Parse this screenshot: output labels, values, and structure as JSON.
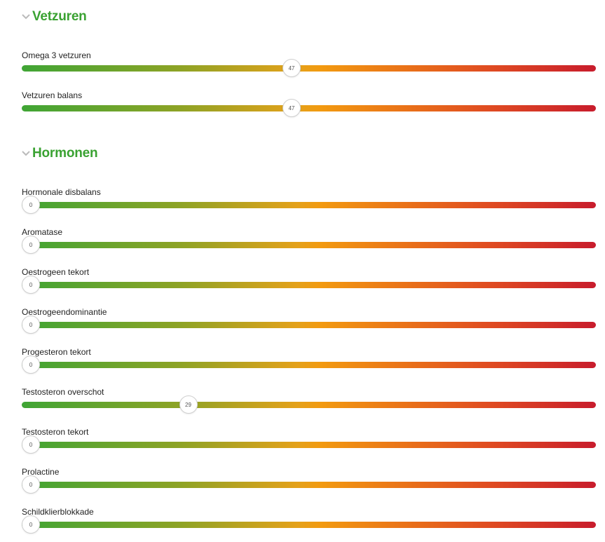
{
  "sections": [
    {
      "title": "Vetzuren",
      "sliders": [
        {
          "label": "Omega 3 vetzuren",
          "value": "47"
        },
        {
          "label": "Vetzuren balans",
          "value": "47"
        }
      ]
    },
    {
      "title": "Hormonen",
      "sliders": [
        {
          "label": "Hormonale disbalans",
          "value": "0"
        },
        {
          "label": "Aromatase",
          "value": "0"
        },
        {
          "label": "Oestrogeen tekort",
          "value": "0"
        },
        {
          "label": "Oestrogeendominantie",
          "value": "0"
        },
        {
          "label": "Progesteron tekort",
          "value": "0"
        },
        {
          "label": "Testosteron overschot",
          "value": "29"
        },
        {
          "label": "Testosteron tekort",
          "value": "0"
        },
        {
          "label": "Prolactine",
          "value": "0"
        },
        {
          "label": "Schildklierblokkade",
          "value": "0"
        }
      ]
    }
  ],
  "slider_max": 100,
  "colors": {
    "section_title": "#3aa232",
    "chevron": "#bbbbbb",
    "gradient_start": "#3fa535",
    "gradient_mid": "#f29a10",
    "gradient_end": "#c81c2c"
  },
  "icons": {
    "section_toggle": "chevron-down-icon"
  }
}
